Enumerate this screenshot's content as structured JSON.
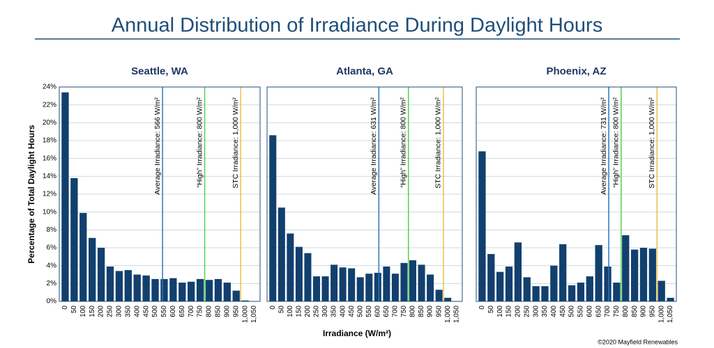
{
  "title": "Annual Distribution of Irradiance During Daylight Hours",
  "ylabel": "Percentage of Total Daylight Hours",
  "xlabel": "Irradiance  (W/m²)",
  "credit": "©2020 Mayfield Renewables",
  "chart_data": [
    {
      "type": "bar",
      "title": "Seattle, WA",
      "color": "#12406e",
      "grid": true,
      "show_ytick_labels": true,
      "categories": [
        "0",
        "50",
        "100",
        "150",
        "200",
        "250",
        "300",
        "350",
        "400",
        "450",
        "500",
        "550",
        "600",
        "650",
        "700",
        "750",
        "800",
        "850",
        "900",
        "950",
        "1,000",
        "1,050"
      ],
      "values": [
        23.4,
        13.8,
        9.9,
        7.1,
        6.0,
        3.9,
        3.4,
        3.5,
        3.0,
        2.9,
        2.5,
        2.5,
        2.6,
        2.1,
        2.2,
        2.5,
        2.4,
        2.5,
        2.1,
        1.2,
        0.1,
        0
      ],
      "ylim": [
        0,
        24
      ],
      "yticks": [
        {
          "value": 0,
          "label": "0%"
        },
        {
          "value": 2,
          "label": "2%"
        },
        {
          "value": 4,
          "label": "4%"
        },
        {
          "value": 6,
          "label": "6%"
        },
        {
          "value": 8,
          "label": "8%"
        },
        {
          "value": 10,
          "label": "10%"
        },
        {
          "value": 12,
          "label": "12%"
        },
        {
          "value": 14,
          "label": "14%"
        },
        {
          "value": 16,
          "label": "16%"
        },
        {
          "value": 18,
          "label": "18%"
        },
        {
          "value": 20,
          "label": "20%"
        },
        {
          "value": 22,
          "label": "22%"
        },
        {
          "value": 24,
          "label": "24%"
        }
      ],
      "annotations": [
        {
          "text": "Average Irradiance: 566 W/m²",
          "x": 566,
          "color": "#2e75b6"
        },
        {
          "text": "“High” Irradiance: 800 W/m²",
          "x": 800,
          "color": "#4fd14f"
        },
        {
          "text": "STC Irradiance: 1,000 W/m²",
          "x": 1000,
          "color": "#e8c14a"
        }
      ]
    },
    {
      "type": "bar",
      "title": "Atlanta, GA",
      "color": "#12406e",
      "grid": true,
      "show_ytick_labels": false,
      "categories": [
        "0",
        "50",
        "100",
        "150",
        "200",
        "250",
        "300",
        "350",
        "400",
        "450",
        "500",
        "550",
        "600",
        "650",
        "700",
        "750",
        "800",
        "850",
        "900",
        "950",
        "1,000",
        "1,050"
      ],
      "values": [
        18.6,
        10.5,
        7.6,
        6.1,
        5.4,
        2.8,
        2.8,
        4.1,
        3.8,
        3.7,
        2.7,
        3.1,
        3.2,
        3.9,
        3.1,
        4.3,
        4.6,
        4.1,
        3.0,
        1.3,
        0.4,
        0
      ],
      "ylim": [
        0,
        24
      ],
      "yticks": [
        0,
        2,
        4,
        6,
        8,
        10,
        12,
        14,
        16,
        18,
        20,
        22,
        24
      ],
      "annotations": [
        {
          "text": "Average Irradiance: 631 W/m²",
          "x": 631,
          "color": "#2e75b6"
        },
        {
          "text": "“High” Irradiance: 800 W/m²",
          "x": 800,
          "color": "#4fd14f"
        },
        {
          "text": "STC Irradiance: 1,000 W/m²",
          "x": 1000,
          "color": "#e8c14a"
        }
      ]
    },
    {
      "type": "bar",
      "title": "Phoenix, AZ",
      "color": "#12406e",
      "grid": true,
      "show_ytick_labels": false,
      "categories": [
        "0",
        "50",
        "100",
        "150",
        "200",
        "250",
        "300",
        "350",
        "400",
        "450",
        "500",
        "550",
        "600",
        "650",
        "700",
        "750",
        "800",
        "850",
        "900",
        "950",
        "1,000",
        "1,050"
      ],
      "values": [
        16.8,
        5.3,
        3.3,
        3.9,
        6.6,
        2.7,
        1.7,
        1.7,
        4.0,
        6.4,
        1.8,
        2.1,
        2.8,
        6.3,
        3.9,
        2.1,
        7.4,
        5.8,
        6.0,
        5.9,
        2.3,
        0.4
      ],
      "ylim": [
        0,
        24
      ],
      "yticks": [
        0,
        2,
        4,
        6,
        8,
        10,
        12,
        14,
        16,
        18,
        20,
        22,
        24
      ],
      "annotations": [
        {
          "text": "Average Irradiance: 731 W/m²",
          "x": 731,
          "color": "#2e75b6"
        },
        {
          "text": "“High” Irradiance: 800 W/m²",
          "x": 800,
          "color": "#4fd14f"
        },
        {
          "text": "STC Irradiance: 1,000 W/m²",
          "x": 1000,
          "color": "#e8c14a"
        }
      ]
    }
  ]
}
